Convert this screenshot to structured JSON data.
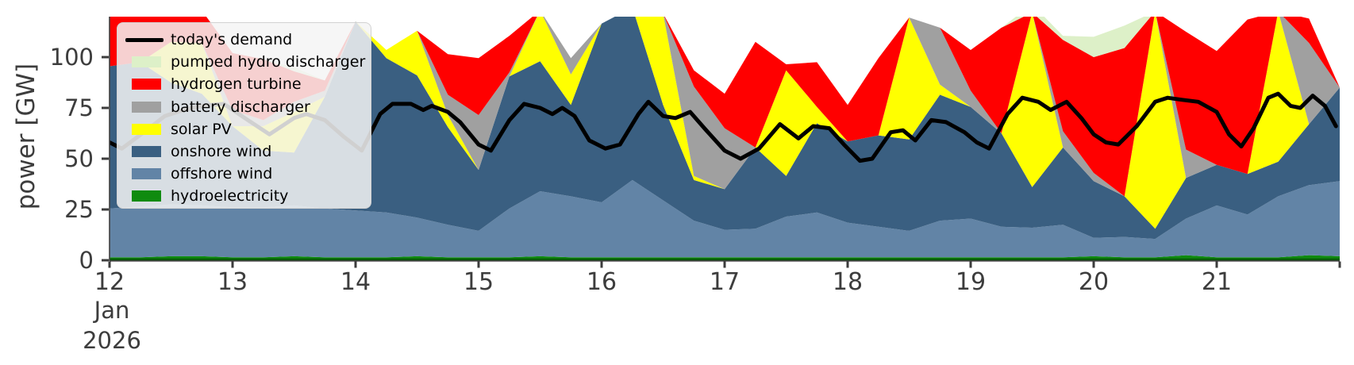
{
  "axes": {
    "ylabel": "power [GW]",
    "ytick_values": [
      0,
      25,
      50,
      75,
      100
    ],
    "ytick_labels": [
      "0",
      "25",
      "50",
      "75",
      "100"
    ],
    "xtick_values": [
      12,
      13,
      14,
      15,
      16,
      17,
      18,
      19,
      20,
      21
    ],
    "xtick_labels": [
      "12",
      "13",
      "14",
      "15",
      "16",
      "17",
      "18",
      "19",
      "20",
      "21"
    ],
    "x_edge_tick_value": 22,
    "x_date_line1": "Jan",
    "x_date_line2": "2026",
    "tick_color": "#3d3d3d",
    "spine_color": "#3f3f3f",
    "hydro_baseline_color": "#095c09"
  },
  "legend": {
    "items": [
      {
        "label": "today's demand",
        "type": "line",
        "color": "#000000"
      },
      {
        "label": "pumped hydro discharger",
        "type": "patch",
        "color": "#ddf0c8"
      },
      {
        "label": "hydrogen turbine",
        "type": "patch",
        "color": "#ff0000"
      },
      {
        "label": "battery discharger",
        "type": "patch",
        "color": "#a0a0a0"
      },
      {
        "label": "solar PV",
        "type": "patch",
        "color": "#ffff00"
      },
      {
        "label": "onshore wind",
        "type": "patch",
        "color": "#3a5f81"
      },
      {
        "label": "offshore wind",
        "type": "patch",
        "color": "#6284a6"
      },
      {
        "label": "hydroelectricity",
        "type": "patch",
        "color": "#0f8b0f"
      }
    ]
  },
  "chart_data": {
    "type": "area",
    "stacked": true,
    "title": "",
    "xlabel": "",
    "ylabel": "power [GW]",
    "xlim": [
      12,
      22
    ],
    "ylim": [
      0,
      120
    ],
    "x_unit": "day of Jan 2026",
    "grid": false,
    "legend_position": "upper left",
    "x": [
      12.0,
      12.25,
      12.5,
      12.75,
      13.0,
      13.25,
      13.5,
      13.75,
      14.0,
      14.25,
      14.5,
      14.75,
      15.0,
      15.25,
      15.5,
      15.75,
      16.0,
      16.25,
      16.5,
      16.75,
      17.0,
      17.25,
      17.5,
      17.75,
      18.0,
      18.25,
      18.5,
      18.75,
      19.0,
      19.25,
      19.5,
      19.75,
      20.0,
      20.25,
      20.5,
      20.75,
      21.0,
      21.25,
      21.5,
      21.75,
      22.0
    ],
    "series": [
      {
        "name": "hydroelectricity",
        "color": "#0f8b0f",
        "values": [
          1.5,
          1.5,
          2,
          2,
          1.5,
          1.5,
          2,
          1.5,
          1.5,
          1.5,
          2,
          1.5,
          1.5,
          1.5,
          2,
          1.5,
          1.5,
          1.5,
          1.5,
          1.5,
          1.5,
          1.5,
          1.5,
          1.5,
          1.5,
          1.5,
          1.5,
          1.5,
          1.5,
          1.5,
          1.5,
          1.5,
          2,
          1.5,
          1.5,
          2.5,
          1.5,
          1.5,
          1.5,
          2.5,
          2
        ]
      },
      {
        "name": "offshore wind",
        "color": "#6284a6",
        "values": [
          24,
          25,
          25.5,
          25,
          24.5,
          24.5,
          25,
          24,
          23,
          22,
          19,
          16,
          13,
          24,
          32,
          30,
          27,
          38,
          28,
          18,
          13.5,
          14,
          20,
          22,
          17,
          15,
          13,
          18,
          19,
          15,
          14.5,
          16,
          9,
          10,
          9,
          18,
          25.5,
          21,
          30,
          34.5,
          37
        ]
      },
      {
        "name": "onshore wind",
        "color": "#3a5f81",
        "values": [
          70,
          71,
          60,
          55,
          40,
          28,
          26,
          55,
          93,
          76,
          70,
          48,
          30,
          65,
          64,
          45,
          88,
          85,
          47,
          20,
          20,
          40,
          20,
          44,
          40,
          45,
          45,
          62,
          55,
          46,
          20,
          38,
          28,
          20,
          5,
          20,
          20,
          20,
          17,
          30,
          46
        ]
      },
      {
        "name": "solar PV",
        "color": "#ffff00",
        "values": [
          0,
          0,
          20,
          25,
          0,
          12,
          20,
          0,
          0,
          4,
          22,
          6,
          0,
          0,
          25,
          15,
          0,
          0,
          45,
          2,
          0,
          0,
          52,
          8,
          0,
          0,
          60,
          5,
          0,
          0,
          86,
          0,
          0,
          0,
          107,
          0,
          0,
          0,
          74,
          0,
          0
        ]
      },
      {
        "name": "battery discharger",
        "color": "#a0a0a0",
        "values": [
          0,
          0,
          0,
          0,
          8,
          3,
          5,
          3,
          0,
          0,
          0,
          10,
          27,
          2,
          0,
          8,
          0,
          0,
          0,
          44,
          30,
          0,
          0,
          0,
          0,
          0,
          0,
          28,
          8,
          0,
          0,
          8,
          4,
          0,
          0,
          14,
          0,
          0,
          0,
          40,
          0
        ]
      },
      {
        "name": "hydrogen turbine",
        "color": "#ff0000",
        "values": [
          25,
          28,
          14,
          16,
          28,
          30,
          15,
          5,
          0,
          0,
          0,
          20,
          28,
          18,
          0,
          0,
          0,
          0,
          0,
          8,
          17,
          52,
          3,
          22,
          18,
          38,
          0,
          0,
          20,
          52,
          0,
          45,
          57,
          73,
          0,
          58,
          56,
          76,
          0,
          12,
          0
        ]
      },
      {
        "name": "pumped hydro discharger",
        "color": "#ddf0c8",
        "values": [
          0,
          0,
          0,
          0,
          0,
          0,
          2,
          0,
          0,
          0,
          0,
          0,
          0,
          0,
          0,
          0,
          0,
          0,
          0,
          0,
          0,
          0,
          0,
          0,
          0,
          0,
          0,
          0,
          0,
          0,
          4,
          2,
          10,
          11,
          0,
          0,
          0,
          0,
          0,
          0,
          0
        ]
      }
    ],
    "demand_line": {
      "name": "today's demand",
      "color": "#000000",
      "x": [
        12.0,
        12.1,
        12.3,
        12.45,
        12.6,
        12.75,
        12.93,
        13.1,
        13.3,
        13.5,
        13.6,
        13.75,
        13.9,
        14.05,
        14.2,
        14.3,
        14.45,
        14.55,
        14.62,
        14.75,
        14.85,
        15.0,
        15.1,
        15.25,
        15.37,
        15.5,
        15.6,
        15.68,
        15.78,
        15.9,
        16.03,
        16.15,
        16.3,
        16.38,
        16.5,
        16.6,
        16.72,
        16.85,
        17.0,
        17.13,
        17.28,
        17.45,
        17.6,
        17.72,
        17.85,
        17.97,
        18.1,
        18.2,
        18.35,
        18.45,
        18.55,
        18.68,
        18.8,
        18.95,
        19.05,
        19.15,
        19.3,
        19.42,
        19.55,
        19.65,
        19.78,
        19.9,
        20.0,
        20.1,
        20.2,
        20.35,
        20.5,
        20.6,
        20.72,
        20.85,
        21.0,
        21.1,
        21.2,
        21.3,
        21.42,
        21.5,
        21.6,
        21.68,
        21.78,
        21.88,
        21.97
      ],
      "y": [
        58,
        55,
        64,
        71,
        74,
        76,
        77,
        70,
        62,
        70,
        72,
        69,
        61,
        54,
        72,
        77,
        77,
        74,
        76,
        73,
        68,
        57,
        54,
        69,
        77,
        75,
        72,
        75,
        71,
        59,
        55,
        57,
        72,
        78,
        71,
        70,
        73,
        64,
        54,
        50,
        55,
        67,
        60,
        66,
        65,
        57,
        49,
        50,
        63,
        64,
        59,
        69,
        68,
        63,
        58,
        55,
        72,
        80,
        78,
        74,
        78,
        70,
        62,
        58,
        57,
        66,
        78,
        80,
        79,
        78,
        73,
        62,
        56,
        65,
        80,
        82,
        76,
        75,
        81,
        76,
        66
      ]
    }
  }
}
